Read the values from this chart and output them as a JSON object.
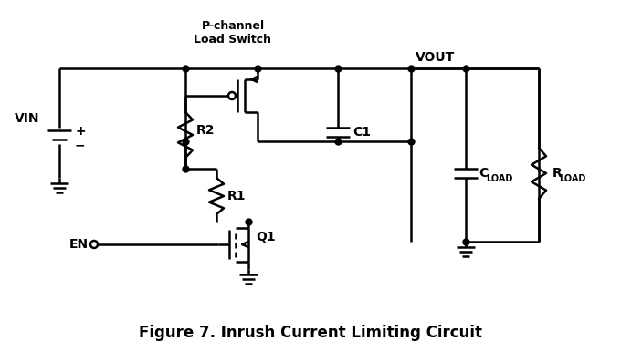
{
  "title": "Figure 7. Inrush Current Limiting Circuit",
  "label_pchannel": "P-channel",
  "label_load_switch": "Load Switch",
  "label_vin": "VIN",
  "label_vout": "VOUT",
  "label_r2": "R2",
  "label_r1": "R1",
  "label_c1": "C1",
  "label_cload_main": "C",
  "label_cload_sub": "LOAD",
  "label_rload_main": "R",
  "label_rload_sub": "LOAD",
  "label_q1": "Q1",
  "label_en": "EN",
  "bg_color": "#ffffff",
  "line_color": "#000000",
  "figsize": [
    6.8,
    3.86
  ],
  "dpi": 100
}
